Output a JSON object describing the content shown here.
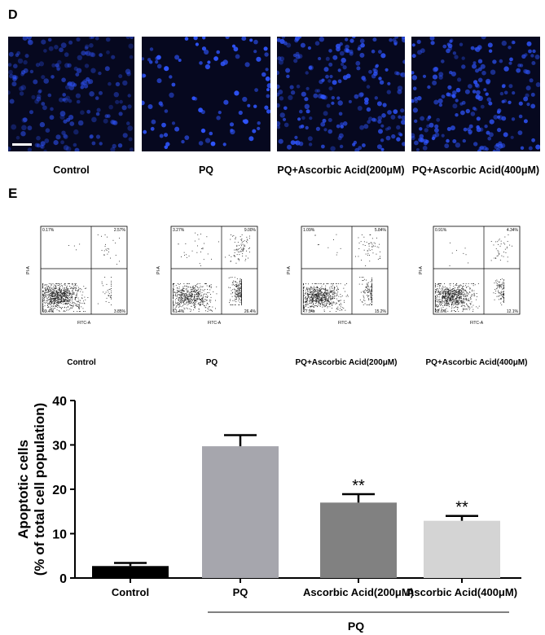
{
  "panel_d": {
    "label": "D",
    "images": [
      {
        "caption": "Control",
        "cells": "dense-dim"
      },
      {
        "caption": "PQ",
        "cells": "sparse-bright"
      },
      {
        "caption": "PQ+Ascorbic Acid(200μM)",
        "cells": "dense-medium"
      },
      {
        "caption": "PQ+Ascorbic Acid(400μM)",
        "cells": "dense-medium"
      }
    ],
    "colors": {
      "background": "#06081f",
      "nucleus": "#2f55ff"
    }
  },
  "panel_e": {
    "label": "E",
    "flow_plots": [
      {
        "caption": "Control",
        "q1": "0.17%",
        "q2": "2.57%",
        "q3": "3.85%",
        "q4": "93.4%"
      },
      {
        "caption": "PQ",
        "q1": "3.27%",
        "q2": "9.00%",
        "q3": "26.4%",
        "q4": "61.4%"
      },
      {
        "caption": "PQ+Ascorbic Acid(200μM)",
        "q1": "1.09%",
        "q2": "5.84%",
        "q3": "15.2%",
        "q4": "77.9%"
      },
      {
        "caption": "PQ+Ascorbic Acid(400μM)",
        "q1": "0.91%",
        "q2": "4.34%",
        "q3": "12.1%",
        "q4": "82.6%"
      }
    ],
    "flow_axis": {
      "x": "FITC-A",
      "y": "PI-A"
    }
  },
  "chart_data": {
    "type": "bar",
    "categories": [
      "Control",
      "PQ",
      "Ascorbic Acid(200μM)",
      "Ascorbic Acid(400μM)"
    ],
    "values": [
      2.7,
      29.7,
      17.0,
      12.9
    ],
    "errors": [
      0.7,
      2.5,
      1.9,
      1.1
    ],
    "significance": [
      "",
      "",
      "**",
      "**"
    ],
    "bar_colors": [
      "#000000",
      "#a6a6ad",
      "#818181",
      "#d4d4d4"
    ],
    "ylabel_line1": "Apoptotic cells",
    "ylabel_line2": "(% of total cell population)",
    "yticks": [
      0,
      10,
      20,
      30,
      40
    ],
    "ylim": [
      0,
      40
    ],
    "group_label": "PQ",
    "grid": false
  }
}
